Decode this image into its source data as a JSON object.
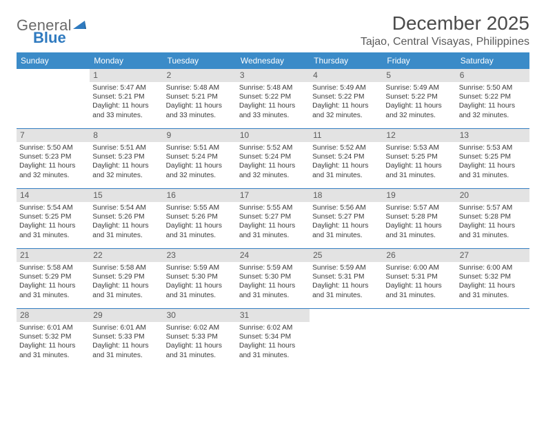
{
  "logo": {
    "text1": "General",
    "text2": "Blue"
  },
  "title": "December 2025",
  "location": "Tajao, Central Visayas, Philippines",
  "colors": {
    "header_bg": "#3b8bc8",
    "header_text": "#ffffff",
    "daynum_bg": "#e3e3e3",
    "rule": "#2f7abf",
    "logo_gray": "#6a6a6a",
    "logo_blue": "#2f7abf"
  },
  "day_names": [
    "Sunday",
    "Monday",
    "Tuesday",
    "Wednesday",
    "Thursday",
    "Friday",
    "Saturday"
  ],
  "weeks": [
    [
      {
        "day": "",
        "lines": []
      },
      {
        "day": "1",
        "lines": [
          "Sunrise: 5:47 AM",
          "Sunset: 5:21 PM",
          "Daylight: 11 hours",
          "and 33 minutes."
        ]
      },
      {
        "day": "2",
        "lines": [
          "Sunrise: 5:48 AM",
          "Sunset: 5:21 PM",
          "Daylight: 11 hours",
          "and 33 minutes."
        ]
      },
      {
        "day": "3",
        "lines": [
          "Sunrise: 5:48 AM",
          "Sunset: 5:22 PM",
          "Daylight: 11 hours",
          "and 33 minutes."
        ]
      },
      {
        "day": "4",
        "lines": [
          "Sunrise: 5:49 AM",
          "Sunset: 5:22 PM",
          "Daylight: 11 hours",
          "and 32 minutes."
        ]
      },
      {
        "day": "5",
        "lines": [
          "Sunrise: 5:49 AM",
          "Sunset: 5:22 PM",
          "Daylight: 11 hours",
          "and 32 minutes."
        ]
      },
      {
        "day": "6",
        "lines": [
          "Sunrise: 5:50 AM",
          "Sunset: 5:22 PM",
          "Daylight: 11 hours",
          "and 32 minutes."
        ]
      }
    ],
    [
      {
        "day": "7",
        "lines": [
          "Sunrise: 5:50 AM",
          "Sunset: 5:23 PM",
          "Daylight: 11 hours",
          "and 32 minutes."
        ]
      },
      {
        "day": "8",
        "lines": [
          "Sunrise: 5:51 AM",
          "Sunset: 5:23 PM",
          "Daylight: 11 hours",
          "and 32 minutes."
        ]
      },
      {
        "day": "9",
        "lines": [
          "Sunrise: 5:51 AM",
          "Sunset: 5:24 PM",
          "Daylight: 11 hours",
          "and 32 minutes."
        ]
      },
      {
        "day": "10",
        "lines": [
          "Sunrise: 5:52 AM",
          "Sunset: 5:24 PM",
          "Daylight: 11 hours",
          "and 32 minutes."
        ]
      },
      {
        "day": "11",
        "lines": [
          "Sunrise: 5:52 AM",
          "Sunset: 5:24 PM",
          "Daylight: 11 hours",
          "and 31 minutes."
        ]
      },
      {
        "day": "12",
        "lines": [
          "Sunrise: 5:53 AM",
          "Sunset: 5:25 PM",
          "Daylight: 11 hours",
          "and 31 minutes."
        ]
      },
      {
        "day": "13",
        "lines": [
          "Sunrise: 5:53 AM",
          "Sunset: 5:25 PM",
          "Daylight: 11 hours",
          "and 31 minutes."
        ]
      }
    ],
    [
      {
        "day": "14",
        "lines": [
          "Sunrise: 5:54 AM",
          "Sunset: 5:25 PM",
          "Daylight: 11 hours",
          "and 31 minutes."
        ]
      },
      {
        "day": "15",
        "lines": [
          "Sunrise: 5:54 AM",
          "Sunset: 5:26 PM",
          "Daylight: 11 hours",
          "and 31 minutes."
        ]
      },
      {
        "day": "16",
        "lines": [
          "Sunrise: 5:55 AM",
          "Sunset: 5:26 PM",
          "Daylight: 11 hours",
          "and 31 minutes."
        ]
      },
      {
        "day": "17",
        "lines": [
          "Sunrise: 5:55 AM",
          "Sunset: 5:27 PM",
          "Daylight: 11 hours",
          "and 31 minutes."
        ]
      },
      {
        "day": "18",
        "lines": [
          "Sunrise: 5:56 AM",
          "Sunset: 5:27 PM",
          "Daylight: 11 hours",
          "and 31 minutes."
        ]
      },
      {
        "day": "19",
        "lines": [
          "Sunrise: 5:57 AM",
          "Sunset: 5:28 PM",
          "Daylight: 11 hours",
          "and 31 minutes."
        ]
      },
      {
        "day": "20",
        "lines": [
          "Sunrise: 5:57 AM",
          "Sunset: 5:28 PM",
          "Daylight: 11 hours",
          "and 31 minutes."
        ]
      }
    ],
    [
      {
        "day": "21",
        "lines": [
          "Sunrise: 5:58 AM",
          "Sunset: 5:29 PM",
          "Daylight: 11 hours",
          "and 31 minutes."
        ]
      },
      {
        "day": "22",
        "lines": [
          "Sunrise: 5:58 AM",
          "Sunset: 5:29 PM",
          "Daylight: 11 hours",
          "and 31 minutes."
        ]
      },
      {
        "day": "23",
        "lines": [
          "Sunrise: 5:59 AM",
          "Sunset: 5:30 PM",
          "Daylight: 11 hours",
          "and 31 minutes."
        ]
      },
      {
        "day": "24",
        "lines": [
          "Sunrise: 5:59 AM",
          "Sunset: 5:30 PM",
          "Daylight: 11 hours",
          "and 31 minutes."
        ]
      },
      {
        "day": "25",
        "lines": [
          "Sunrise: 5:59 AM",
          "Sunset: 5:31 PM",
          "Daylight: 11 hours",
          "and 31 minutes."
        ]
      },
      {
        "day": "26",
        "lines": [
          "Sunrise: 6:00 AM",
          "Sunset: 5:31 PM",
          "Daylight: 11 hours",
          "and 31 minutes."
        ]
      },
      {
        "day": "27",
        "lines": [
          "Sunrise: 6:00 AM",
          "Sunset: 5:32 PM",
          "Daylight: 11 hours",
          "and 31 minutes."
        ]
      }
    ],
    [
      {
        "day": "28",
        "lines": [
          "Sunrise: 6:01 AM",
          "Sunset: 5:32 PM",
          "Daylight: 11 hours",
          "and 31 minutes."
        ]
      },
      {
        "day": "29",
        "lines": [
          "Sunrise: 6:01 AM",
          "Sunset: 5:33 PM",
          "Daylight: 11 hours",
          "and 31 minutes."
        ]
      },
      {
        "day": "30",
        "lines": [
          "Sunrise: 6:02 AM",
          "Sunset: 5:33 PM",
          "Daylight: 11 hours",
          "and 31 minutes."
        ]
      },
      {
        "day": "31",
        "lines": [
          "Sunrise: 6:02 AM",
          "Sunset: 5:34 PM",
          "Daylight: 11 hours",
          "and 31 minutes."
        ]
      },
      {
        "day": "",
        "lines": []
      },
      {
        "day": "",
        "lines": []
      },
      {
        "day": "",
        "lines": []
      }
    ]
  ]
}
